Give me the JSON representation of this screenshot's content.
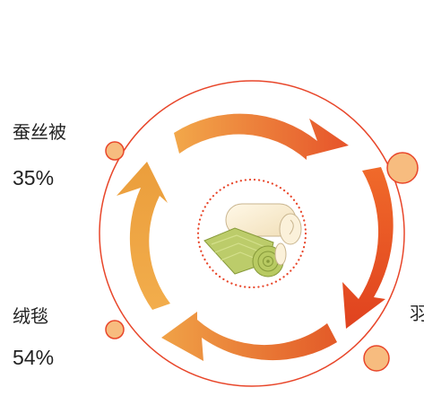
{
  "items": [
    {
      "name": "蚕丝被",
      "percent": "35%"
    },
    {
      "name": "绒毯",
      "percent": "54%"
    },
    {
      "name": "羽",
      "percent": ""
    }
  ],
  "colors": {
    "ring": "#e8462a",
    "dot_fill": "#f7bc7f",
    "dot_stroke": "#e8462a",
    "arrow_light": "#f1a93a",
    "arrow_dark": "#e4471f"
  },
  "icons": {
    "center": "rolled-blanket-icon"
  }
}
